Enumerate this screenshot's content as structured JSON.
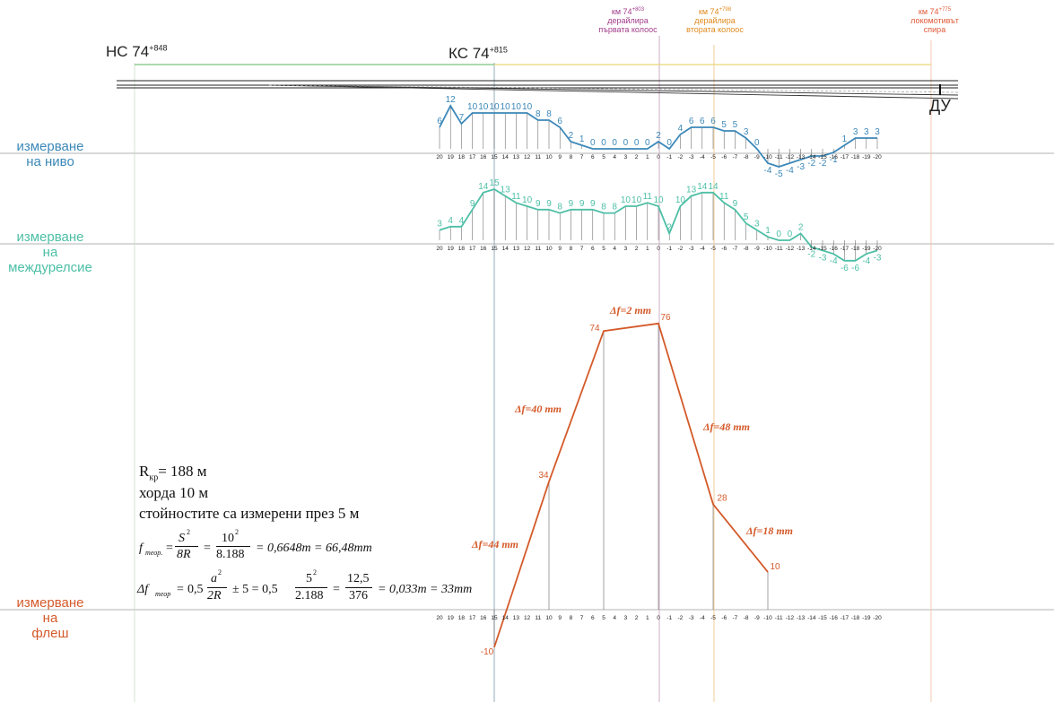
{
  "colors": {
    "level": "#3c88b8",
    "gauge": "#4dbfa6",
    "flesh": "#d45a2a",
    "ns_line": "#7bc47f",
    "ks_line": "#ead77a",
    "km_first": "#a03c8a",
    "km_second": "#e08a1e",
    "km_stop": "#e05a3a"
  },
  "stations": {
    "ns": {
      "label": "НС 74",
      "sup": "+848"
    },
    "ks": {
      "label": "КС 74",
      "sup": "+815"
    },
    "du": {
      "label": "ДУ"
    }
  },
  "headers": {
    "first_axle": {
      "km": "км 74",
      "sup": "+803",
      "l1": "дерайлира",
      "l2": "първата колоос"
    },
    "second_axle": {
      "km": "км 74",
      "sup": "+798",
      "l1": "дерайлира",
      "l2": "втората колоос"
    },
    "loco_stop": {
      "km": "км 74",
      "sup": "+775",
      "l1": "локомотивът",
      "l2": "спира"
    }
  },
  "row_labels": {
    "level": [
      "измерване",
      "на ниво"
    ],
    "gauge": [
      "измерване",
      "на",
      "междурелсие"
    ],
    "flesh": [
      "измерване",
      "на",
      "флеш"
    ]
  },
  "axis_ticks": [
    "20",
    "19",
    "18",
    "17",
    "16",
    "15",
    "14",
    "13",
    "12",
    "11",
    "10",
    "9",
    "8",
    "7",
    "6",
    "5",
    "4",
    "3",
    "2",
    "1",
    "0",
    "-1",
    "-2",
    "-3",
    "-4",
    "-5",
    "-6",
    "-7",
    "-8",
    "-9",
    "-10",
    "-11",
    "-12",
    "-13",
    "-14",
    "-15",
    "-16",
    "-17",
    "-18",
    "-19",
    "-20"
  ],
  "chart_data": [
    {
      "type": "line",
      "name": "level",
      "x": [
        "20",
        "19",
        "18",
        "17",
        "16",
        "15",
        "14",
        "13",
        "12",
        "11",
        "10",
        "9",
        "8",
        "7",
        "6",
        "5",
        "4",
        "3",
        "2",
        "1",
        "0",
        "-1",
        "-2",
        "-3",
        "-4",
        "-5",
        "-6",
        "-7",
        "-8",
        "-9",
        "-10",
        "-11",
        "-12",
        "-13",
        "-14",
        "-15",
        "-16",
        "-17",
        "-18",
        "-19",
        "-20"
      ],
      "values": [
        6,
        12,
        7,
        10,
        10,
        10,
        10,
        10,
        10,
        8,
        8,
        6,
        2,
        1,
        0,
        0,
        0,
        0,
        0,
        0,
        2,
        0,
        4,
        6,
        6,
        6,
        5,
        5,
        3,
        0,
        -4,
        -5,
        -4,
        -3,
        -2,
        -2,
        -1,
        1,
        3,
        3,
        3
      ]
    },
    {
      "type": "line",
      "name": "gauge",
      "x": [
        "20",
        "19",
        "18",
        "17",
        "16",
        "15",
        "14",
        "13",
        "12",
        "11",
        "10",
        "9",
        "8",
        "7",
        "6",
        "5",
        "4",
        "3",
        "2",
        "1",
        "0",
        "-1",
        "-2",
        "-3",
        "-4",
        "-5",
        "-6",
        "-7",
        "-8",
        "-9",
        "-10",
        "-11",
        "-12",
        "-13",
        "-14",
        "-15",
        "-16",
        "-17",
        "-18",
        "-19",
        "-20"
      ],
      "values": [
        3,
        4,
        4,
        9,
        14,
        15,
        13,
        11,
        10,
        9,
        9,
        8,
        9,
        9,
        9,
        8,
        8,
        10,
        10,
        11,
        10,
        2,
        10,
        13,
        14,
        14,
        11,
        9,
        5,
        3,
        1,
        0,
        0,
        2,
        -2,
        -3,
        -4,
        -6,
        -6,
        -4,
        -3
      ]
    },
    {
      "type": "line",
      "name": "flesh",
      "points": [
        {
          "x": "15",
          "y": -10
        },
        {
          "x": "10",
          "y": 34
        },
        {
          "x": "5",
          "y": 74
        },
        {
          "x": "0",
          "y": 76
        },
        {
          "x": "-5",
          "y": 28
        },
        {
          "x": "-10",
          "y": 10
        }
      ],
      "annotations": [
        "Δf=44 mm",
        "Δf=40 mm",
        "Δf=2 mm",
        "Δf=48 mm",
        "Δf=18 mm"
      ]
    }
  ],
  "notes": {
    "radius_label": "R",
    "radius_sub": "кр",
    "radius_value": "= 188 м",
    "chord": "хорда 10 м",
    "measured": "стойностите са измерени през 5 м",
    "f1_lhs": "f",
    "f1_lhs_sub": "теор.",
    "f1_rest": "= 0,6648m = 66,48mm",
    "f1_num1": "S",
    "f1_den1": "8R",
    "f1_num2": "10",
    "f1_den2": "8.188",
    "f2_lhs": "Δf",
    "f2_lhs_sub": "теор",
    "f2_a": "0,5",
    "f2_num1": "a",
    "f2_den1": "2R",
    "f2_pm": "± 5 = 0,5",
    "f2_num2": "5",
    "f2_den2": "2.188",
    "f2_num3": "12,5",
    "f2_den3": "376",
    "f2_rest": "= 0,033m = 33mm"
  }
}
